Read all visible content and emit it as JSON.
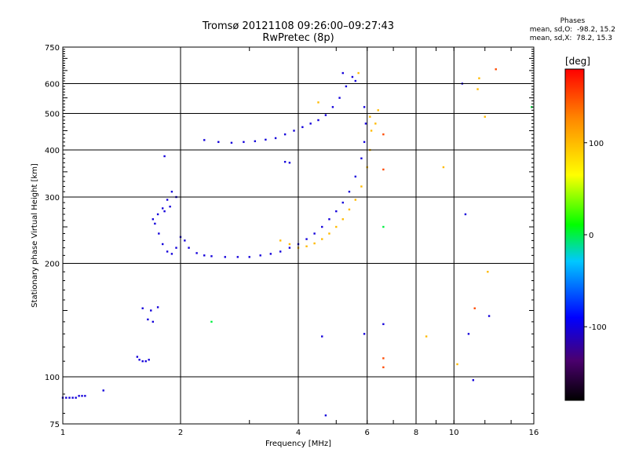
{
  "header": {
    "title": "Tromsø 20121108 09:26:00–09:27:43",
    "subtitle": "RwPretec (8p)",
    "phase_title": "Phases",
    "phase_o": "mean, sd,O:  -98.2, 15.2",
    "phase_x": "mean, sd,X:  78.2, 15.3"
  },
  "chart_data": {
    "type": "scatter",
    "title": "Tromsø 20121108 09:26:00–09:27:43",
    "subtitle": "RwPretec (8p)",
    "xlabel": "Frequency [MHz]",
    "ylabel": "Stationary phase Virtual Height [km]",
    "xscale": "log",
    "yscale": "log",
    "xlim": [
      1,
      16
    ],
    "ylim": [
      75,
      750
    ],
    "xticks": [
      1,
      2,
      4,
      6,
      8,
      10,
      16
    ],
    "yticks": [
      75,
      100,
      200,
      300,
      400,
      500,
      600,
      750
    ],
    "grid_x": [
      2,
      4,
      6,
      8,
      10
    ],
    "grid_y": [
      100,
      200,
      300,
      400,
      500,
      600
    ],
    "colorbar": {
      "label": "[deg]",
      "range": [
        -180,
        180
      ],
      "ticks": [
        100,
        0,
        -100
      ],
      "colors": [
        "#000000",
        "#4b006e",
        "#0000ff",
        "#00c8ff",
        "#00ff00",
        "#ffff00",
        "#ff8800",
        "#ff0000"
      ]
    },
    "series": [
      {
        "phase": -110,
        "points": [
          [
            1.0,
            88
          ],
          [
            1.02,
            88
          ],
          [
            1.04,
            88
          ],
          [
            1.06,
            88
          ],
          [
            1.08,
            88
          ],
          [
            1.1,
            89
          ],
          [
            1.12,
            89
          ],
          [
            1.14,
            89
          ],
          [
            1.27,
            92
          ],
          [
            1.57,
            111
          ],
          [
            1.6,
            110
          ],
          [
            1.63,
            110
          ],
          [
            1.66,
            111
          ],
          [
            1.55,
            113
          ],
          [
            1.6,
            152
          ],
          [
            1.65,
            142
          ],
          [
            1.7,
            140
          ],
          [
            1.75,
            153
          ],
          [
            1.68,
            150
          ],
          [
            1.7,
            262
          ],
          [
            1.72,
            255
          ],
          [
            1.75,
            270
          ],
          [
            1.8,
            280
          ],
          [
            1.85,
            295
          ],
          [
            1.9,
            310
          ],
          [
            1.95,
            300
          ],
          [
            1.88,
            283
          ],
          [
            1.82,
            275
          ],
          [
            1.76,
            240
          ],
          [
            1.8,
            225
          ],
          [
            1.85,
            215
          ],
          [
            1.9,
            212
          ],
          [
            1.95,
            220
          ],
          [
            2.0,
            235
          ],
          [
            2.05,
            230
          ],
          [
            2.1,
            220
          ],
          [
            2.2,
            213
          ],
          [
            2.3,
            210
          ],
          [
            2.4,
            209
          ],
          [
            2.6,
            208
          ],
          [
            2.8,
            208
          ],
          [
            3.0,
            208
          ],
          [
            3.2,
            210
          ],
          [
            3.4,
            212
          ],
          [
            3.6,
            215
          ],
          [
            3.8,
            220
          ],
          [
            4.0,
            225
          ],
          [
            4.2,
            232
          ],
          [
            4.4,
            240
          ],
          [
            4.6,
            250
          ],
          [
            4.8,
            262
          ],
          [
            5.0,
            275
          ],
          [
            5.2,
            290
          ],
          [
            5.4,
            310
          ],
          [
            5.6,
            340
          ],
          [
            5.8,
            380
          ],
          [
            5.9,
            420
          ],
          [
            5.95,
            470
          ],
          [
            5.9,
            520
          ],
          [
            2.3,
            425
          ],
          [
            2.5,
            420
          ],
          [
            2.7,
            418
          ],
          [
            2.9,
            420
          ],
          [
            3.1,
            422
          ],
          [
            3.3,
            426
          ],
          [
            3.5,
            430
          ],
          [
            3.7,
            440
          ],
          [
            3.9,
            450
          ],
          [
            4.1,
            460
          ],
          [
            4.3,
            470
          ],
          [
            4.5,
            480
          ],
          [
            4.7,
            495
          ],
          [
            4.9,
            520
          ],
          [
            5.1,
            550
          ],
          [
            5.3,
            590
          ],
          [
            5.5,
            625
          ],
          [
            5.2,
            640
          ],
          [
            5.6,
            610
          ],
          [
            3.7,
            372
          ],
          [
            3.8,
            370
          ],
          [
            4.6,
            128
          ],
          [
            4.7,
            79
          ],
          [
            5.9,
            130
          ],
          [
            6.6,
            138
          ],
          [
            10.5,
            600
          ],
          [
            10.7,
            270
          ],
          [
            10.9,
            130
          ],
          [
            11.2,
            98
          ],
          [
            12.3,
            145
          ],
          [
            1.82,
            385
          ]
        ]
      },
      {
        "phase": 100,
        "points": [
          [
            3.6,
            230
          ],
          [
            3.8,
            225
          ],
          [
            4.0,
            220
          ],
          [
            4.2,
            222
          ],
          [
            4.4,
            226
          ],
          [
            4.6,
            232
          ],
          [
            4.8,
            240
          ],
          [
            5.0,
            250
          ],
          [
            5.2,
            262
          ],
          [
            5.4,
            278
          ],
          [
            5.6,
            295
          ],
          [
            5.8,
            320
          ],
          [
            6.0,
            360
          ],
          [
            6.1,
            400
          ],
          [
            6.15,
            450
          ],
          [
            6.1,
            490
          ],
          [
            6.3,
            470
          ],
          [
            5.7,
            640
          ],
          [
            4.5,
            535
          ],
          [
            6.4,
            510
          ],
          [
            11.5,
            580
          ],
          [
            11.6,
            620
          ],
          [
            12.0,
            490
          ],
          [
            9.4,
            360
          ],
          [
            8.5,
            128
          ],
          [
            10.2,
            108
          ],
          [
            12.2,
            190
          ]
        ]
      },
      {
        "phase": 150,
        "points": [
          [
            6.6,
            440
          ],
          [
            6.6,
            355
          ],
          [
            6.6,
            112
          ],
          [
            6.6,
            106
          ],
          [
            12.8,
            655
          ],
          [
            11.3,
            152
          ]
        ]
      },
      {
        "phase": 0,
        "points": [
          [
            2.4,
            140
          ],
          [
            6.6,
            250
          ],
          [
            15.8,
            520
          ]
        ]
      }
    ]
  }
}
